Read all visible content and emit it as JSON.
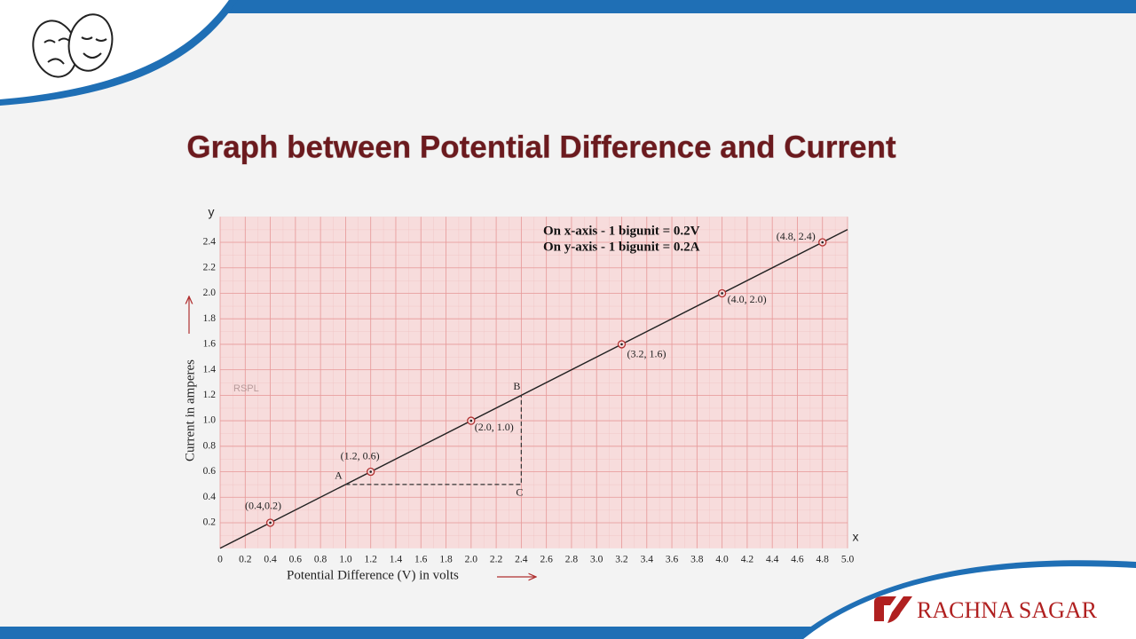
{
  "slide": {
    "title": "Graph between Potential Difference and Current",
    "logo": "RACHNA SAGAR"
  },
  "chart_data": {
    "type": "scatter",
    "x_label": "Potential Difference (V) in volts",
    "y_label": "Current in amperes",
    "x_axis_name": "x",
    "y_axis_name": "y",
    "watermark": "RSPL",
    "annotations": [
      "On x-axis - 1 bigunit = 0.2V",
      "On y-axis - 1 bigunit = 0.2A"
    ],
    "x": [
      0.4,
      1.2,
      2.0,
      3.2,
      4.0,
      4.8
    ],
    "values": [
      0.2,
      0.6,
      1.0,
      1.6,
      2.0,
      2.4
    ],
    "point_labels": [
      "(0.4,0.2)",
      "(1.2, 0.6)",
      "(2.0, 1.0)",
      "(3.2, 1.6)",
      "(4.0, 2.0)",
      "(4.8, 2.4)"
    ],
    "fit_line": {
      "x": [
        0,
        5.0
      ],
      "values": [
        0,
        2.5
      ]
    },
    "construction": [
      {
        "label": "A",
        "x": 1.0,
        "y": 0.5
      },
      {
        "label": "B",
        "x": 2.4,
        "y": 1.2
      },
      {
        "label": "C",
        "x": 2.4,
        "y": 0.5
      }
    ],
    "color": "#222222",
    "marker_color": "#b03030",
    "grid": true,
    "xlim": [
      0,
      5.0
    ],
    "ylim": [
      0,
      2.6
    ],
    "xticks": [
      0,
      0.2,
      0.4,
      0.6,
      0.8,
      {
        "value": 1,
        "label": "1.0"
      },
      1.2,
      1.4,
      1.6,
      1.8,
      {
        "value": 2,
        "label": "2.0"
      },
      2.2,
      2.4,
      2.6,
      2.8,
      {
        "value": 3,
        "label": "3.0"
      },
      3.2,
      3.4,
      3.6,
      3.8,
      {
        "value": 4,
        "label": "4.0"
      },
      4.2,
      4.4,
      4.6,
      4.8,
      {
        "value": 5,
        "label": "5.0"
      }
    ],
    "yticks": [
      0.2,
      0.4,
      0.6,
      0.8,
      {
        "value": 1,
        "label": "1.0"
      },
      1.2,
      1.4,
      1.6,
      1.8,
      {
        "value": 2,
        "label": "2.0"
      },
      2.2,
      2.4
    ]
  }
}
